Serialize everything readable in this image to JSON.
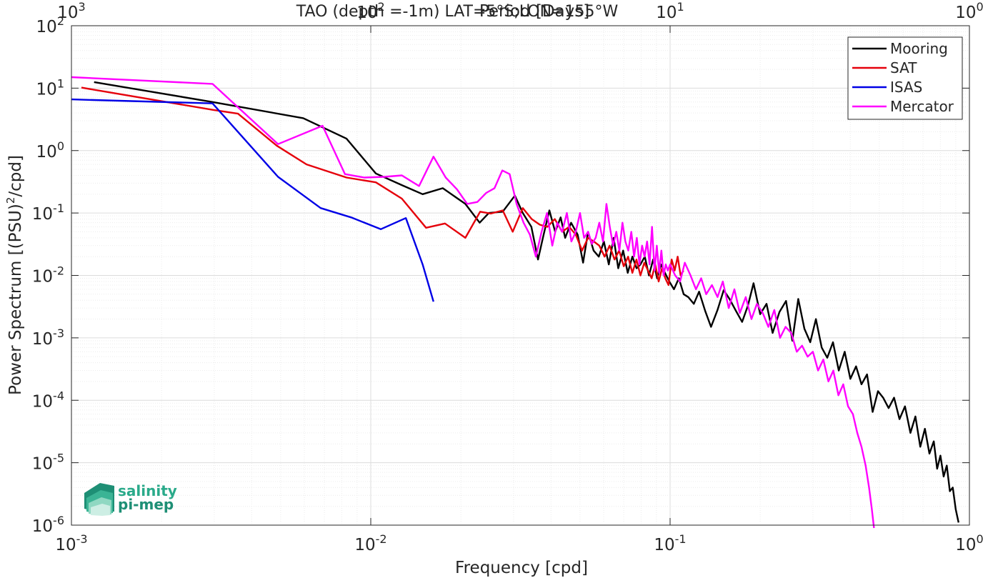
{
  "chart_data": {
    "type": "line",
    "title": "TAO (depth =-1m) LAT=5°S;LON=155°W",
    "xlabel": "Frequency [cpd]",
    "ylabel": "Power Spectrum [(PSU)",
    "ylabel_exp": "2",
    "ylabel_tail": "/cpd]",
    "top_xlabel": "Period [Days]",
    "xscale": "log",
    "yscale": "log",
    "xlim": [
      0.001,
      1
    ],
    "ylim": [
      1e-06,
      100
    ],
    "grid": true,
    "legend_position": "top-right",
    "x_ticks": [
      {
        "base": "10",
        "exp": "-3"
      },
      {
        "base": "10",
        "exp": "-2"
      },
      {
        "base": "10",
        "exp": "-1"
      },
      {
        "base": "10",
        "exp": "0"
      }
    ],
    "top_ticks": [
      {
        "base": "10",
        "exp": "3"
      },
      {
        "base": "10",
        "exp": "2"
      },
      {
        "base": "10",
        "exp": "1"
      },
      {
        "base": "10",
        "exp": "0"
      }
    ],
    "y_ticks": [
      {
        "base": "10",
        "exp": "-6"
      },
      {
        "base": "10",
        "exp": "-5"
      },
      {
        "base": "10",
        "exp": "-4"
      },
      {
        "base": "10",
        "exp": "-3"
      },
      {
        "base": "10",
        "exp": "-2"
      },
      {
        "base": "10",
        "exp": "-1"
      },
      {
        "base": "10",
        "exp": "0"
      },
      {
        "base": "10",
        "exp": "1"
      },
      {
        "base": "10",
        "exp": "2"
      }
    ],
    "series": [
      {
        "name": "Mooring",
        "color": "#000000",
        "x": [
          0.00119,
          0.00296,
          0.00595,
          0.0083,
          0.0104,
          0.0127,
          0.0149,
          0.0174,
          0.0207,
          0.0231,
          0.0248,
          0.0276,
          0.0303,
          0.0322,
          0.0344,
          0.0362,
          0.0378,
          0.0395,
          0.0413,
          0.0431,
          0.0446,
          0.0467,
          0.0491,
          0.0512,
          0.0532,
          0.0555,
          0.0578,
          0.0601,
          0.0624,
          0.0648,
          0.0671,
          0.0697,
          0.0722,
          0.0748,
          0.0773,
          0.0796,
          0.0823,
          0.085,
          0.0878,
          0.0905,
          0.0932,
          0.0961,
          0.0994,
          0.103,
          0.107,
          0.111,
          0.115,
          0.12,
          0.125,
          0.131,
          0.137,
          0.144,
          0.151,
          0.158,
          0.166,
          0.174,
          0.182,
          0.19,
          0.2,
          0.21,
          0.22,
          0.232,
          0.244,
          0.256,
          0.268,
          0.281,
          0.294,
          0.307,
          0.321,
          0.335,
          0.35,
          0.366,
          0.383,
          0.4,
          0.418,
          0.436,
          0.455,
          0.475,
          0.495,
          0.515,
          0.537,
          0.56,
          0.584,
          0.609,
          0.635,
          0.66,
          0.685,
          0.71,
          0.735,
          0.76,
          0.78,
          0.8,
          0.82,
          0.84,
          0.86,
          0.88,
          0.9,
          0.92
        ],
        "y": [
          12.5,
          6.0,
          3.3,
          1.55,
          0.43,
          0.28,
          0.2,
          0.25,
          0.14,
          0.07,
          0.1,
          0.105,
          0.19,
          0.1,
          0.06,
          0.018,
          0.045,
          0.11,
          0.05,
          0.085,
          0.04,
          0.07,
          0.045,
          0.016,
          0.05,
          0.025,
          0.02,
          0.035,
          0.015,
          0.04,
          0.013,
          0.025,
          0.011,
          0.02,
          0.013,
          0.015,
          0.02,
          0.01,
          0.018,
          0.009,
          0.015,
          0.011,
          0.008,
          0.006,
          0.009,
          0.005,
          0.0045,
          0.0035,
          0.0055,
          0.0027,
          0.0015,
          0.0028,
          0.0058,
          0.0042,
          0.0027,
          0.0018,
          0.0033,
          0.0075,
          0.0024,
          0.0035,
          0.0012,
          0.0026,
          0.0039,
          0.0009,
          0.0042,
          0.0014,
          0.00085,
          0.002,
          0.0007,
          0.00048,
          0.00085,
          0.0003,
          0.0006,
          0.00022,
          0.00035,
          0.00018,
          0.00026,
          6.5e-05,
          0.00014,
          0.00011,
          7.5e-05,
          0.00011,
          5e-05,
          8e-05,
          3e-05,
          5.5e-05,
          1.8e-05,
          3.5e-05,
          1.4e-05,
          2.2e-05,
          8e-06,
          1.3e-05,
          6e-06,
          9e-06,
          3.5e-06,
          4e-06,
          1.8e-06,
          1.1e-06
        ]
      },
      {
        "name": "SAT",
        "color": "#e5000b",
        "x": [
          0.00108,
          0.00296,
          0.0036,
          0.00485,
          0.0061,
          0.0083,
          0.0104,
          0.0127,
          0.0153,
          0.0177,
          0.0207,
          0.0232,
          0.0252,
          0.0276,
          0.0298,
          0.0322,
          0.0345,
          0.0367,
          0.0389,
          0.0412,
          0.0436,
          0.046,
          0.0484,
          0.0508,
          0.0532,
          0.0556,
          0.058,
          0.0604,
          0.0628,
          0.0652,
          0.0676,
          0.07,
          0.0724,
          0.0748,
          0.0772,
          0.0796,
          0.082,
          0.0844,
          0.0868,
          0.0892,
          0.0916,
          0.094,
          0.0964,
          0.0988,
          0.1012,
          0.1036,
          0.106,
          0.1084,
          0.1108
        ],
        "y": [
          10.2,
          4.5,
          3.9,
          1.2,
          0.6,
          0.37,
          0.31,
          0.17,
          0.058,
          0.068,
          0.04,
          0.105,
          0.098,
          0.11,
          0.05,
          0.12,
          0.08,
          0.065,
          0.06,
          0.08,
          0.05,
          0.06,
          0.045,
          0.025,
          0.04,
          0.035,
          0.03,
          0.02,
          0.03,
          0.018,
          0.025,
          0.014,
          0.02,
          0.011,
          0.018,
          0.01,
          0.016,
          0.012,
          0.009,
          0.015,
          0.008,
          0.013,
          0.009,
          0.007,
          0.018,
          0.012,
          0.02,
          0.01,
          0.012
        ]
      },
      {
        "name": "ISAS",
        "color": "#0000e6",
        "x": [
          0.001,
          0.00296,
          0.0049,
          0.0068,
          0.0086,
          0.0108,
          0.0131,
          0.0149,
          0.0162
        ],
        "y": [
          6.6,
          5.7,
          0.38,
          0.12,
          0.085,
          0.055,
          0.083,
          0.015,
          0.0038
        ]
      },
      {
        "name": "Mercator",
        "color": "#ff00ff",
        "x": [
          0.001,
          0.00296,
          0.0049,
          0.0069,
          0.0082,
          0.0095,
          0.0111,
          0.0127,
          0.0145,
          0.0162,
          0.0178,
          0.0194,
          0.021,
          0.0227,
          0.0243,
          0.0259,
          0.0275,
          0.0291,
          0.0307,
          0.0324,
          0.034,
          0.0356,
          0.0372,
          0.0388,
          0.0404,
          0.042,
          0.0436,
          0.0452,
          0.0468,
          0.0484,
          0.05,
          0.0516,
          0.0532,
          0.0548,
          0.0564,
          0.058,
          0.0597,
          0.0613,
          0.0629,
          0.0645,
          0.0661,
          0.0677,
          0.0693,
          0.0709,
          0.0725,
          0.0742,
          0.0758,
          0.0774,
          0.079,
          0.0806,
          0.0822,
          0.0838,
          0.0854,
          0.087,
          0.0887,
          0.0903,
          0.0919,
          0.0935,
          0.0951,
          0.0967,
          0.0983,
          0.1,
          0.104,
          0.108,
          0.112,
          0.117,
          0.122,
          0.127,
          0.132,
          0.138,
          0.144,
          0.15,
          0.157,
          0.164,
          0.171,
          0.179,
          0.187,
          0.195,
          0.204,
          0.213,
          0.223,
          0.233,
          0.243,
          0.254,
          0.265,
          0.276,
          0.288,
          0.3,
          0.312,
          0.325,
          0.338,
          0.351,
          0.365,
          0.379,
          0.393,
          0.408,
          0.422,
          0.436,
          0.45,
          0.462,
          0.472,
          0.48
        ],
        "y": [
          15.0,
          11.7,
          1.27,
          2.5,
          0.42,
          0.37,
          0.38,
          0.4,
          0.27,
          0.8,
          0.37,
          0.24,
          0.14,
          0.15,
          0.21,
          0.25,
          0.48,
          0.42,
          0.14,
          0.07,
          0.045,
          0.02,
          0.05,
          0.1,
          0.03,
          0.07,
          0.05,
          0.1,
          0.035,
          0.05,
          0.1,
          0.04,
          0.05,
          0.032,
          0.04,
          0.07,
          0.035,
          0.14,
          0.06,
          0.03,
          0.05,
          0.025,
          0.07,
          0.035,
          0.025,
          0.05,
          0.02,
          0.04,
          0.015,
          0.03,
          0.02,
          0.035,
          0.015,
          0.06,
          0.012,
          0.03,
          0.011,
          0.025,
          0.01,
          0.015,
          0.012,
          0.015,
          0.01,
          0.008,
          0.016,
          0.01,
          0.006,
          0.009,
          0.005,
          0.007,
          0.0045,
          0.008,
          0.003,
          0.006,
          0.0025,
          0.0045,
          0.002,
          0.0035,
          0.0025,
          0.0015,
          0.0028,
          0.001,
          0.0015,
          0.0012,
          0.0006,
          0.00075,
          0.0005,
          0.0006,
          0.0003,
          0.00045,
          0.0002,
          0.0003,
          0.00012,
          0.00018,
          8e-05,
          6e-05,
          3e-05,
          1.8e-05,
          9e-06,
          4e-06,
          1.8e-06,
          9e-07
        ]
      }
    ]
  },
  "logo": {
    "line1": "salinity",
    "line2": "pi-mep",
    "color": "#2aaa8a"
  }
}
